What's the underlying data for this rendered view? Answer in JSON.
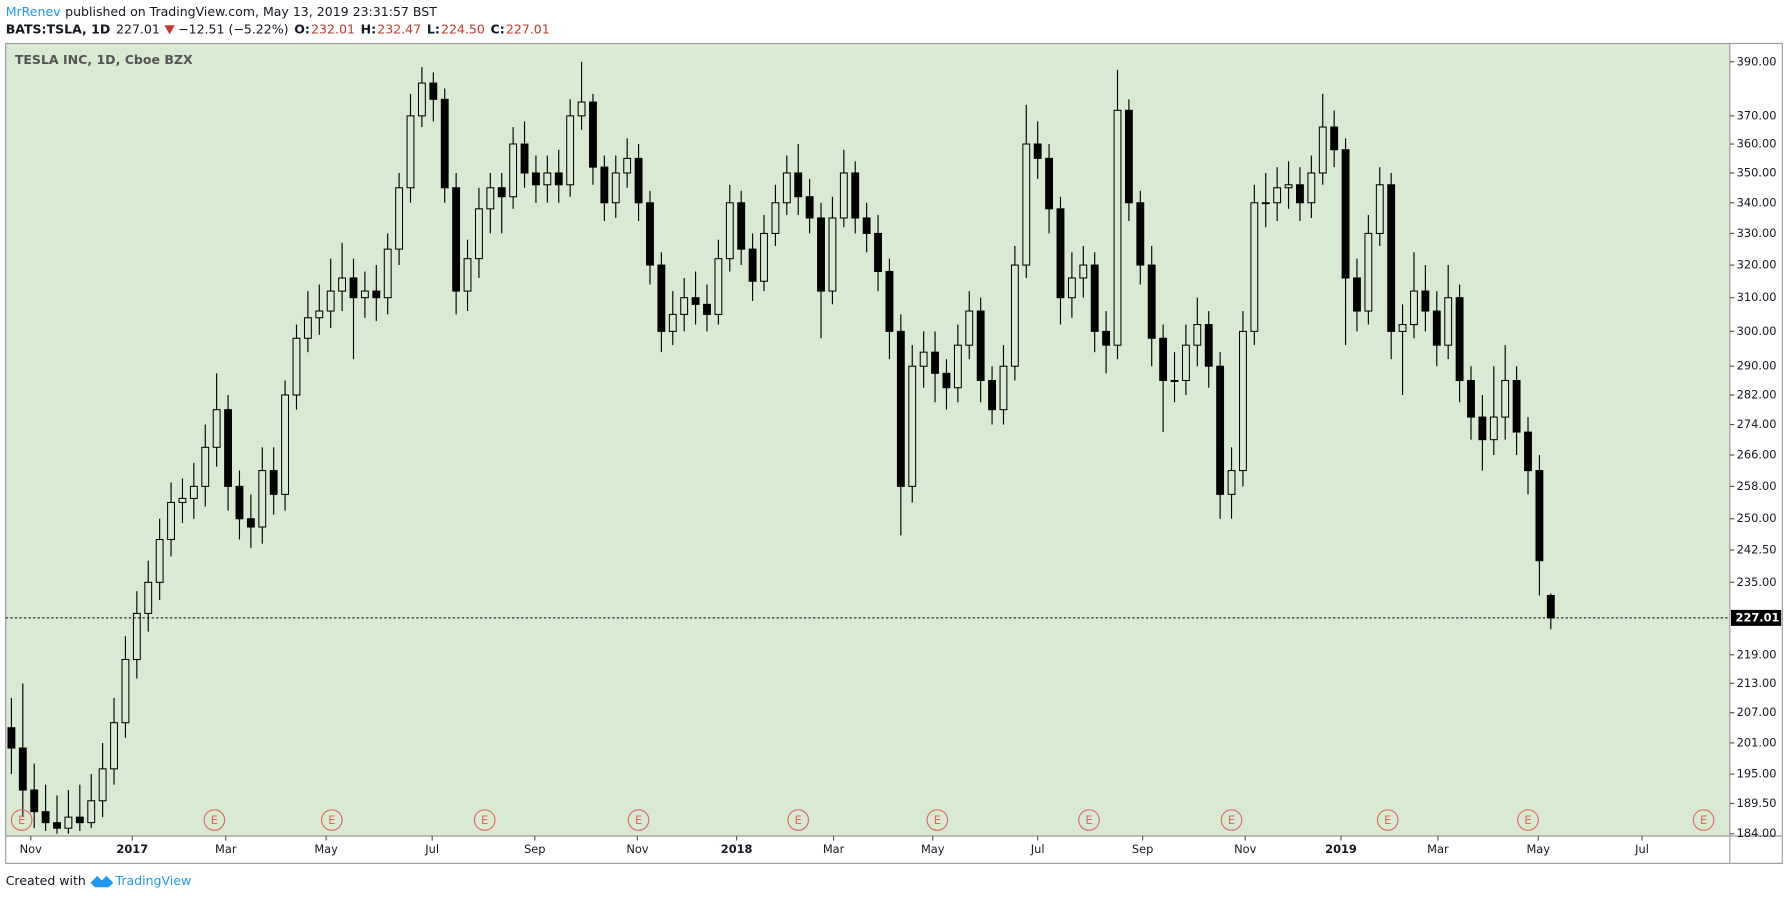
{
  "header": {
    "author": "MrRenev",
    "published": "published on TradingView.com, May 13, 2019 23:31:57 BST",
    "symbol": "BATS:TSLA, 1D",
    "last": "227.01",
    "change": "−12.51 (−5.22%)",
    "o_label": "O:",
    "open": "232.01",
    "h_label": "H:",
    "high": "232.47",
    "l_label": "L:",
    "low": "224.50",
    "c_label": "C:",
    "close": "227.01"
  },
  "chart_data": {
    "type": "candlestick",
    "title": "TESLA INC, 1D, Cboe BZX",
    "background": "#d9ead3",
    "candle_color": "#000000",
    "log_scale": true,
    "grid": false,
    "x": [
      0.5,
      1.5,
      2.5,
      3.5,
      4.5,
      5.5,
      6.5,
      7.5,
      8.5,
      9.5,
      10.5,
      11.5,
      12.5,
      13.5,
      14.5,
      15.5,
      16.5,
      17.5,
      18.5,
      19.5,
      20.5,
      21.5,
      22.5,
      23.5,
      24.5,
      25.5,
      26.5,
      27.5,
      28.5,
      29.5,
      30.5,
      31.5,
      32.5,
      33.5,
      34.5,
      35.5,
      36.5,
      37.5,
      38.5,
      39.5,
      40.5,
      41.5,
      42.5,
      43.5,
      44.5,
      45.5,
      46.5,
      47.5,
      48.5,
      49.5,
      50.5,
      51.5,
      52.5,
      53.5,
      54.5,
      55.5,
      56.5,
      57.5,
      58.5,
      59.5,
      60.5,
      61.5,
      62.5,
      63.5,
      64.5,
      65.5,
      66.5,
      67.5,
      68.5,
      69.5,
      70.5,
      71.5,
      72.5,
      73.5,
      74.5,
      75.5,
      76.5,
      77.5,
      78.5,
      79.5,
      80.5,
      81.5,
      82.5,
      83.5,
      84.5,
      85.5,
      86.5,
      87.5,
      88.5,
      89.5,
      90.5,
      91.5,
      92.5,
      93.5,
      94.5,
      95.5,
      96.5,
      97.5,
      98.5,
      99.5,
      100.5,
      101.5,
      102.5,
      103.5,
      104.5,
      105.5,
      106.5,
      107.5,
      108.5,
      109.5,
      110.5,
      111.5,
      112.5,
      113.5,
      114.5,
      115.5,
      116.5,
      117.5,
      118.5,
      119.5,
      120.5,
      121.5,
      122.5,
      123.5,
      124.5,
      125.5,
      126.5,
      127.5,
      128.5,
      129.5,
      130.5,
      131.5,
      132.5,
      133.5,
      134.5,
      135.5
    ],
    "open": [
      204,
      200,
      192,
      188,
      186,
      185,
      187,
      186,
      190,
      196,
      205,
      218,
      228,
      235,
      245,
      254,
      255,
      258,
      268,
      278,
      258,
      250,
      248,
      262,
      256,
      282,
      298,
      304,
      306,
      312,
      316,
      310,
      312,
      310,
      325,
      345,
      370,
      382,
      376,
      345,
      312,
      322,
      338,
      345,
      342,
      360,
      350,
      346,
      350,
      346,
      370,
      375,
      352,
      340,
      350,
      355,
      340,
      320,
      300,
      305,
      310,
      308,
      305,
      322,
      340,
      325,
      315,
      330,
      340,
      350,
      342,
      335,
      312,
      335,
      350,
      335,
      330,
      318,
      300,
      258,
      290,
      294,
      288,
      284,
      296,
      306,
      286,
      278,
      290,
      320,
      360,
      355,
      338,
      310,
      316,
      320,
      300,
      296,
      372,
      340,
      320,
      298,
      286,
      286,
      296,
      302,
      290,
      256,
      262,
      300,
      340,
      340,
      345,
      346,
      340,
      350,
      366,
      358,
      316,
      306,
      330,
      346,
      300,
      302,
      312,
      306,
      296,
      310,
      286,
      276,
      270,
      276,
      286,
      272,
      262,
      232.01
    ],
    "high": [
      210,
      213,
      197,
      193,
      191,
      192,
      193,
      195,
      201,
      210,
      223,
      233,
      240,
      250,
      259,
      260,
      264,
      274,
      288,
      282,
      262,
      256,
      268,
      268,
      286,
      302,
      312,
      314,
      322,
      327,
      322,
      318,
      320,
      330,
      350,
      378,
      388,
      386,
      380,
      350,
      328,
      345,
      350,
      350,
      366,
      368,
      356,
      356,
      358,
      376,
      390,
      378,
      356,
      356,
      362,
      360,
      344,
      324,
      312,
      316,
      318,
      314,
      328,
      346,
      344,
      330,
      336,
      346,
      356,
      360,
      348,
      340,
      342,
      358,
      354,
      340,
      336,
      322,
      305,
      296,
      300,
      300,
      292,
      302,
      312,
      310,
      290,
      296,
      326,
      374,
      368,
      360,
      342,
      324,
      326,
      324,
      306,
      387,
      376,
      344,
      326,
      302,
      294,
      302,
      310,
      306,
      294,
      268,
      306,
      346,
      350,
      352,
      354,
      352,
      356,
      378,
      372,
      362,
      322,
      336,
      352,
      350,
      308,
      324,
      320,
      312,
      320,
      314,
      290,
      282,
      290,
      296,
      290,
      276,
      266,
      232.47
    ],
    "low": [
      195,
      187,
      185,
      184.5,
      184,
      184,
      184.5,
      185,
      187,
      193,
      202,
      214,
      224,
      231,
      241,
      249,
      250,
      253,
      263,
      252,
      245,
      243,
      244,
      251,
      252,
      278,
      294,
      299,
      301,
      306,
      292,
      304,
      303,
      305,
      320,
      340,
      366,
      368,
      340,
      305,
      306,
      316,
      330,
      330,
      338,
      345,
      340,
      340,
      340,
      342,
      365,
      346,
      334,
      335,
      345,
      334,
      314,
      294,
      296,
      300,
      302,
      300,
      302,
      318,
      320,
      309,
      312,
      326,
      336,
      336,
      330,
      298,
      308,
      332,
      330,
      324,
      312,
      292,
      246,
      254,
      284,
      280,
      278,
      280,
      292,
      280,
      274,
      274,
      286,
      316,
      348,
      330,
      302,
      304,
      310,
      294,
      288,
      292,
      334,
      314,
      290,
      272,
      280,
      282,
      290,
      284,
      250,
      250,
      258,
      296,
      332,
      334,
      338,
      334,
      335,
      346,
      352,
      296,
      300,
      302,
      326,
      292,
      282,
      298,
      300,
      290,
      292,
      280,
      270,
      262,
      266,
      270,
      266,
      256,
      232,
      224.5
    ],
    "close": [
      200,
      192,
      188,
      186,
      185,
      187,
      186,
      190,
      196,
      205,
      218,
      228,
      235,
      245,
      254,
      255,
      258,
      268,
      278,
      258,
      250,
      248,
      262,
      256,
      282,
      298,
      304,
      306,
      312,
      316,
      310,
      312,
      310,
      325,
      345,
      370,
      382,
      376,
      345,
      312,
      322,
      338,
      345,
      342,
      360,
      350,
      346,
      350,
      346,
      370,
      375,
      352,
      340,
      350,
      355,
      340,
      320,
      300,
      305,
      310,
      308,
      305,
      322,
      340,
      325,
      315,
      330,
      340,
      350,
      342,
      335,
      312,
      335,
      350,
      335,
      330,
      318,
      300,
      258,
      290,
      294,
      288,
      284,
      296,
      306,
      286,
      278,
      290,
      320,
      360,
      355,
      338,
      310,
      316,
      320,
      300,
      296,
      372,
      340,
      320,
      298,
      286,
      286,
      296,
      302,
      290,
      256,
      262,
      300,
      340,
      340,
      345,
      346,
      340,
      350,
      366,
      358,
      316,
      306,
      330,
      346,
      300,
      302,
      312,
      306,
      296,
      310,
      286,
      276,
      270,
      276,
      286,
      272,
      262,
      240,
      227.01
    ],
    "last_price": 227.01,
    "xlim": [
      0,
      151.2
    ],
    "xticks": [
      {
        "value": 2.2,
        "label": "Nov"
      },
      {
        "value": 11.1,
        "label": "2017"
      },
      {
        "value": 19.3,
        "label": "Mar"
      },
      {
        "value": 28.1,
        "label": "May"
      },
      {
        "value": 37.4,
        "label": "Jul"
      },
      {
        "value": 46.4,
        "label": "Sep"
      },
      {
        "value": 55.4,
        "label": "Nov"
      },
      {
        "value": 64.1,
        "label": "2018"
      },
      {
        "value": 72.6,
        "label": "Mar"
      },
      {
        "value": 81.3,
        "label": "May"
      },
      {
        "value": 90.5,
        "label": "Jul"
      },
      {
        "value": 99.7,
        "label": "Sep"
      },
      {
        "value": 108.7,
        "label": "Nov"
      },
      {
        "value": 117.1,
        "label": "2019"
      },
      {
        "value": 125.6,
        "label": "Mar"
      },
      {
        "value": 134.4,
        "label": "May"
      },
      {
        "value": 143.5,
        "label": "Jul"
      }
    ],
    "ylim": [
      183.6,
      397
    ],
    "yticks": [
      {
        "value": 390,
        "label": "390.00"
      },
      {
        "value": 370,
        "label": "370.00"
      },
      {
        "value": 360,
        "label": "360.00"
      },
      {
        "value": 350,
        "label": "350.00"
      },
      {
        "value": 340,
        "label": "340.00"
      },
      {
        "value": 330,
        "label": "330.00"
      },
      {
        "value": 320,
        "label": "320.00"
      },
      {
        "value": 310,
        "label": "310.00"
      },
      {
        "value": 300,
        "label": "300.00"
      },
      {
        "value": 290,
        "label": "290.00"
      },
      {
        "value": 282,
        "label": "282.00"
      },
      {
        "value": 274,
        "label": "274.00"
      },
      {
        "value": 266,
        "label": "266.00"
      },
      {
        "value": 258,
        "label": "258.00"
      },
      {
        "value": 250,
        "label": "250.00"
      },
      {
        "value": 242.5,
        "label": "242.50"
      },
      {
        "value": 235,
        "label": "235.00"
      },
      {
        "value": 219,
        "label": "219.00"
      },
      {
        "value": 213,
        "label": "213.00"
      },
      {
        "value": 207,
        "label": "207.00"
      },
      {
        "value": 201,
        "label": "201.00"
      },
      {
        "value": 195,
        "label": "195.00"
      },
      {
        "value": 189.5,
        "label": "189.50"
      },
      {
        "value": 184,
        "label": "184.00"
      }
    ],
    "events": {
      "label": "E",
      "color": "#e06666",
      "x": [
        1.4,
        18.3,
        28.6,
        42,
        55.5,
        69.5,
        81.7,
        95,
        107.5,
        121.2,
        133.5,
        148.9
      ]
    }
  },
  "footer": {
    "prefix": "Created with",
    "brand": "TradingView"
  }
}
